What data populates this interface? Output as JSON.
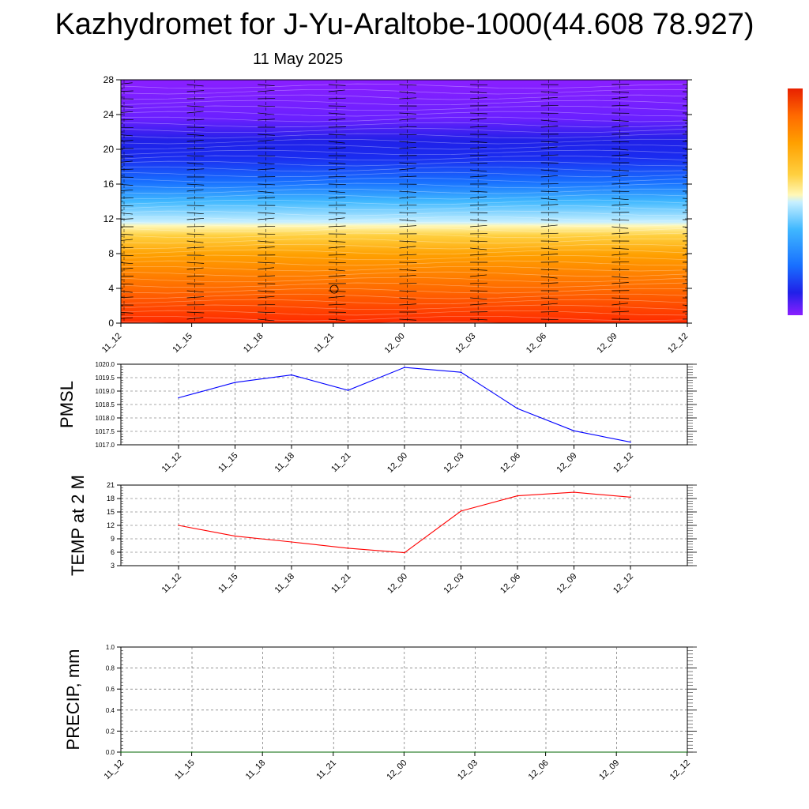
{
  "header": {
    "title": "Kazhydromet for J-Yu-Araltobe-1000(44.608 78.927)",
    "date": "11 May 2025"
  },
  "chart_data": [
    {
      "type": "heatmap",
      "name": "vertical-cross-section",
      "y_ticks": [
        "0",
        "4",
        "8",
        "12",
        "16",
        "20",
        "24",
        "28"
      ],
      "ylim": [
        0,
        28
      ],
      "x_ticks": [
        "11_12",
        "11_15",
        "11_18",
        "11_21",
        "12_00",
        "12_03",
        "12_06",
        "12_09",
        "12_12"
      ],
      "colorbar": [
        "#ff2a00",
        "#ff8c00",
        "#ffd21e",
        "#fff8b0",
        "#bff0ff",
        "#3db4ff",
        "#1f2cf0",
        "#8a1fff"
      ],
      "grid": false,
      "legend": "colorbar right"
    },
    {
      "type": "line",
      "name": "pmsl",
      "ylabel": "PMSL",
      "ylim": [
        1017.0,
        1020.0
      ],
      "y_ticks": [
        "1020.0",
        "1019.5",
        "1019.0",
        "1018.5",
        "1018.0",
        "1017.5",
        "1017.0"
      ],
      "categories": [
        "11_12",
        "11_15",
        "11_18",
        "11_21",
        "12_00",
        "12_03",
        "12_06",
        "12_09",
        "12_12"
      ],
      "series": [
        {
          "values": [
            1018.75,
            1019.32,
            1019.6,
            1019.03,
            1019.88,
            1019.7,
            1018.35,
            1017.52,
            1017.1
          ],
          "color": "#0000ff"
        }
      ],
      "grid": true
    },
    {
      "type": "line",
      "name": "temp-2m",
      "ylabel": "TEMP at 2 M",
      "ylim": [
        3,
        21
      ],
      "y_ticks": [
        "21",
        "18",
        "15",
        "12",
        "9",
        "6",
        "3"
      ],
      "categories": [
        "11_12",
        "11_15",
        "11_18",
        "11_21",
        "12_00",
        "12_03",
        "12_06",
        "12_09",
        "12_12"
      ],
      "series": [
        {
          "values": [
            12.0,
            9.6,
            8.3,
            6.9,
            5.9,
            15.2,
            18.6,
            19.4,
            18.3
          ],
          "color": "#ff0000"
        }
      ],
      "grid": true
    },
    {
      "type": "line",
      "name": "precip",
      "ylabel": "PRECIP, mm",
      "ylim": [
        0.0,
        1.0
      ],
      "y_ticks": [
        "1.0",
        "0.8",
        "0.6",
        "0.4",
        "0.2",
        "0.0"
      ],
      "categories": [
        "11_12",
        "11_15",
        "11_18",
        "11_21",
        "12_00",
        "12_03",
        "12_06",
        "12_09",
        "12_12"
      ],
      "series": [
        {
          "values": [
            0,
            0,
            0,
            0,
            0,
            0,
            0,
            0,
            0
          ],
          "color": "#006400"
        }
      ],
      "grid": true
    }
  ]
}
